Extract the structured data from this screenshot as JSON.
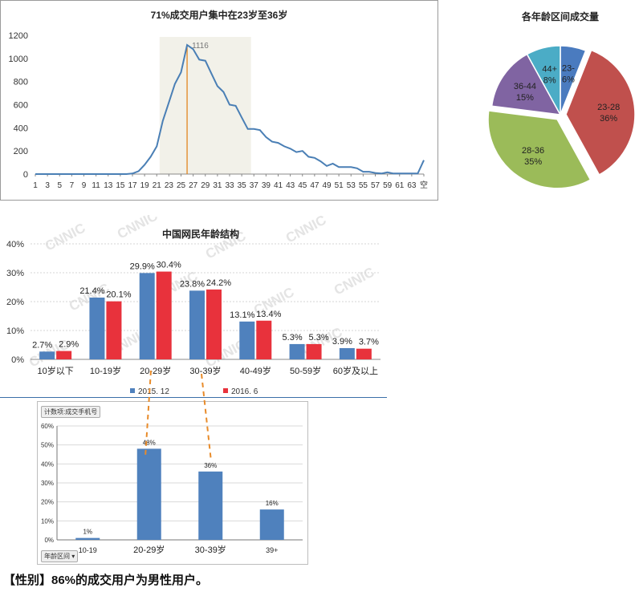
{
  "line_chart": {
    "title": "71%成交用户集中在23岁至36岁",
    "peak_label": "1116",
    "color": "#4a7fb5",
    "highlight_color": "#f2f1e9",
    "marker_color": "#e07d10",
    "x_tick_labels": [
      "1",
      "3",
      "5",
      "7",
      "9",
      "11",
      "13",
      "15",
      "17",
      "19",
      "21",
      "23",
      "25",
      "27",
      "29",
      "31",
      "33",
      "35",
      "37",
      "39",
      "41",
      "43",
      "45",
      "47",
      "49",
      "51",
      "53",
      "55",
      "57",
      "59",
      "61",
      "63",
      "空"
    ],
    "y_tick_labels": [
      "0",
      "200",
      "400",
      "600",
      "800",
      "1000",
      "1200"
    ]
  },
  "pie_chart": {
    "title": "各年龄区间成交量",
    "slices": [
      {
        "label": "23-",
        "pct_label": "6%",
        "color": "#4a7bbf"
      },
      {
        "label": "23-28",
        "pct_label": "36%",
        "color": "#c0504d"
      },
      {
        "label": "28-36",
        "pct_label": "35%",
        "color": "#9bbb59"
      },
      {
        "label": "36-44",
        "pct_label": "15%",
        "color": "#8064a2"
      },
      {
        "label": "44+",
        "pct_label": "8%",
        "color": "#4bacc6"
      }
    ]
  },
  "bar_chart": {
    "title": "中国网民年龄结构",
    "watermark": "CNNIC",
    "y_tick_labels": [
      "0%",
      "10%",
      "20%",
      "30%",
      "40%"
    ],
    "categories": [
      "10岁以下",
      "10-19岁",
      "20-29岁",
      "30-39岁",
      "40-49岁",
      "50-59岁",
      "60岁及以上"
    ],
    "series": [
      {
        "name": "2015. 12",
        "color": "#4f81bd",
        "labels": [
          "2.7%",
          "21.4%",
          "29.9%",
          "23.8%",
          "13.1%",
          "5.3%",
          "3.9%"
        ]
      },
      {
        "name": "2016. 6",
        "color": "#e8323c",
        "labels": [
          "2.9%",
          "20.1%",
          "30.4%",
          "24.2%",
          "13.4%",
          "5.3%",
          "3.7%"
        ]
      }
    ]
  },
  "pivot_chart": {
    "field_button": "计数项:成交手机号",
    "axis_button": "年龄区间",
    "y_tick_labels": [
      "0%",
      "10%",
      "20%",
      "30%",
      "40%",
      "50%",
      "60%"
    ],
    "categories": [
      "10-19",
      "20-29岁",
      "30-39岁",
      "39+"
    ],
    "labels": [
      "1%",
      "48%",
      "36%",
      "16%"
    ],
    "color": "#4f81bd"
  },
  "footer": {
    "text": "【性别】86%的成交用户为男性用户。"
  },
  "chart_data": [
    {
      "type": "line",
      "title": "71%成交用户集中在23岁至36岁",
      "x": [
        "1",
        "2",
        "3",
        "4",
        "5",
        "6",
        "7",
        "8",
        "9",
        "10",
        "11",
        "12",
        "13",
        "14",
        "15",
        "16",
        "17",
        "18",
        "19",
        "20",
        "21",
        "22",
        "23",
        "24",
        "25",
        "26",
        "27",
        "28",
        "29",
        "30",
        "31",
        "32",
        "33",
        "34",
        "35",
        "36",
        "37",
        "38",
        "39",
        "40",
        "41",
        "42",
        "43",
        "44",
        "45",
        "46",
        "47",
        "48",
        "49",
        "50",
        "51",
        "52",
        "53",
        "54",
        "55",
        "56",
        "57",
        "58",
        "59",
        "60",
        "61",
        "62",
        "63",
        "64",
        "空"
      ],
      "values": [
        0,
        0,
        0,
        0,
        0,
        0,
        0,
        0,
        0,
        0,
        0,
        0,
        0,
        0,
        0,
        0,
        5,
        25,
        80,
        150,
        240,
        460,
        620,
        780,
        880,
        1116,
        1080,
        990,
        980,
        870,
        760,
        710,
        600,
        590,
        490,
        390,
        390,
        380,
        320,
        280,
        270,
        240,
        220,
        190,
        200,
        150,
        140,
        110,
        70,
        90,
        60,
        60,
        60,
        50,
        20,
        20,
        10,
        5,
        15,
        5,
        5,
        5,
        5,
        5,
        120
      ],
      "annotations": [
        "1116"
      ],
      "ylim": [
        0,
        1200
      ]
    },
    {
      "type": "pie",
      "title": "各年龄区间成交量",
      "labels": [
        "23-",
        "23-28",
        "28-36",
        "36-44",
        "44+"
      ],
      "values": [
        6,
        36,
        35,
        15,
        8
      ]
    },
    {
      "type": "bar",
      "title": "中国网民年龄结构",
      "categories": [
        "10岁以下",
        "10-19岁",
        "20-29岁",
        "30-39岁",
        "40-49岁",
        "50-59岁",
        "60岁及以上"
      ],
      "series": [
        {
          "name": "2015. 12",
          "values": [
            2.7,
            21.4,
            29.9,
            23.8,
            13.1,
            5.3,
            3.9
          ]
        },
        {
          "name": "2016. 6",
          "values": [
            2.9,
            20.1,
            30.4,
            24.2,
            13.4,
            5.3,
            3.7
          ]
        }
      ],
      "ylim": [
        0,
        40
      ],
      "legend": "bottom"
    },
    {
      "type": "bar",
      "categories": [
        "10-19",
        "20-29岁",
        "30-39岁",
        "39+"
      ],
      "values": [
        1,
        48,
        36,
        16
      ],
      "ylim": [
        0,
        60
      ]
    }
  ]
}
